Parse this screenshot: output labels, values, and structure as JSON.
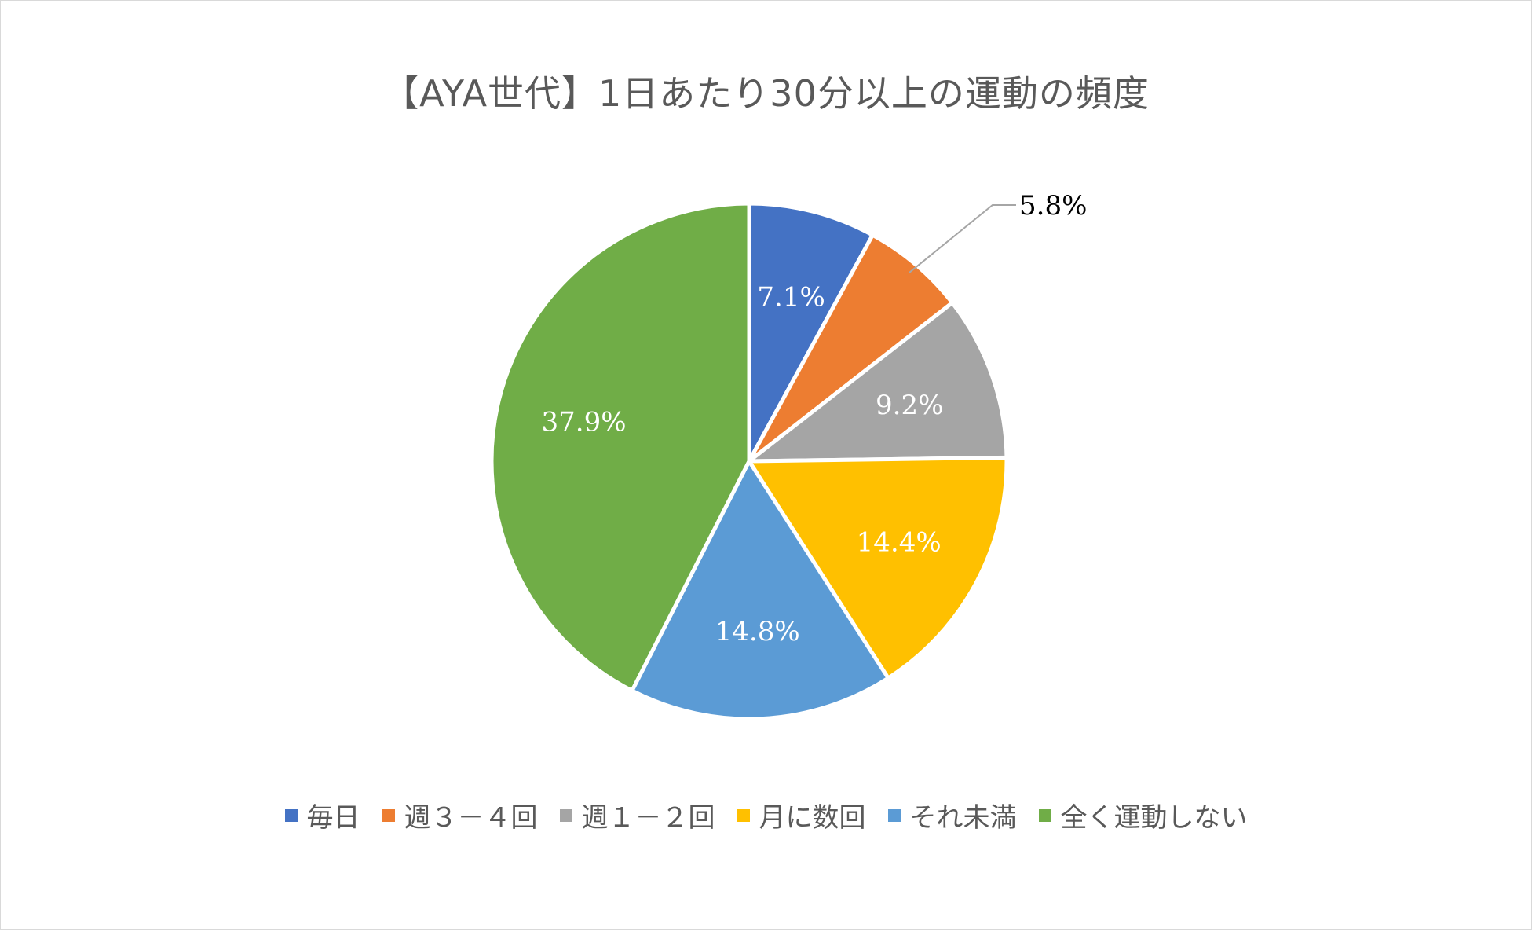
{
  "chart_data": {
    "type": "pie",
    "title": "【AYA世代】1日あたり30分以上の運動の頻度",
    "categories": [
      "毎日",
      "週３－４回",
      "週１－２回",
      "月に数回",
      "それ未満",
      "全く運動しない"
    ],
    "values": [
      7.1,
      5.8,
      9.2,
      14.4,
      14.8,
      37.9
    ],
    "data_labels": [
      "7.1%",
      "5.8%",
      "9.2%",
      "14.4%",
      "14.8%",
      "37.9%"
    ],
    "colors": [
      "#4472C4",
      "#ED7D31",
      "#A5A5A5",
      "#FFC000",
      "#5B9BD5",
      "#70AD47"
    ],
    "legend_position": "bottom"
  }
}
